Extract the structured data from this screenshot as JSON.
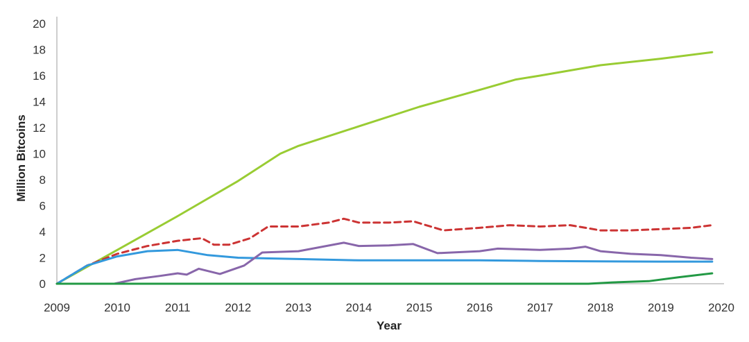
{
  "chart_data": {
    "type": "line",
    "xlabel": "Year",
    "ylabel": "Million Bitcoins",
    "xlim": [
      2009,
      2020
    ],
    "ylim": [
      0,
      20
    ],
    "x_ticks": [
      "2009",
      "2010",
      "2011",
      "2012",
      "2013",
      "2014",
      "2015",
      "2016",
      "2017",
      "2018",
      "2019",
      "2020"
    ],
    "y_ticks": [
      "0",
      "2",
      "4",
      "6",
      "8",
      "10",
      "12",
      "14",
      "16",
      "18",
      "20"
    ],
    "grid": false,
    "legend": "none",
    "series": [
      {
        "color": "#99cc33",
        "style": "solid",
        "points": [
          [
            2009,
            0
          ],
          [
            2010,
            2.6
          ],
          [
            2011,
            5.2
          ],
          [
            2012,
            7.9
          ],
          [
            2012.7,
            10.0
          ],
          [
            2013,
            10.6
          ],
          [
            2014,
            12.1
          ],
          [
            2015,
            13.6
          ],
          [
            2016,
            14.9
          ],
          [
            2016.6,
            15.7
          ],
          [
            2017,
            16.0
          ],
          [
            2018,
            16.8
          ],
          [
            2019,
            17.3
          ],
          [
            2019.85,
            17.8
          ]
        ]
      },
      {
        "color": "#cc3333",
        "style": "dashed",
        "points": [
          [
            2009,
            0
          ],
          [
            2009.5,
            1.4
          ],
          [
            2010,
            2.3
          ],
          [
            2010.5,
            2.9
          ],
          [
            2011,
            3.3
          ],
          [
            2011.4,
            3.5
          ],
          [
            2011.6,
            3.0
          ],
          [
            2011.85,
            3.0
          ],
          [
            2012.2,
            3.5
          ],
          [
            2012.5,
            4.4
          ],
          [
            2013,
            4.4
          ],
          [
            2013.5,
            4.7
          ],
          [
            2013.75,
            5.0
          ],
          [
            2014,
            4.7
          ],
          [
            2014.5,
            4.7
          ],
          [
            2014.9,
            4.8
          ],
          [
            2015.4,
            4.1
          ],
          [
            2016,
            4.3
          ],
          [
            2016.5,
            4.5
          ],
          [
            2017,
            4.4
          ],
          [
            2017.5,
            4.5
          ],
          [
            2018,
            4.1
          ],
          [
            2018.5,
            4.1
          ],
          [
            2019,
            4.2
          ],
          [
            2019.5,
            4.3
          ],
          [
            2019.85,
            4.5
          ]
        ]
      },
      {
        "color": "#3399dd",
        "style": "solid",
        "points": [
          [
            2009,
            0
          ],
          [
            2009.5,
            1.4
          ],
          [
            2010,
            2.1
          ],
          [
            2010.5,
            2.5
          ],
          [
            2011,
            2.6
          ],
          [
            2011.5,
            2.2
          ],
          [
            2012,
            2.0
          ],
          [
            2013,
            1.9
          ],
          [
            2014,
            1.8
          ],
          [
            2015,
            1.8
          ],
          [
            2016,
            1.8
          ],
          [
            2017,
            1.75
          ],
          [
            2018,
            1.72
          ],
          [
            2019,
            1.7
          ],
          [
            2019.85,
            1.7
          ]
        ]
      },
      {
        "color": "#8866aa",
        "style": "solid",
        "points": [
          [
            2009.95,
            0
          ],
          [
            2010.3,
            0.35
          ],
          [
            2010.7,
            0.6
          ],
          [
            2011,
            0.8
          ],
          [
            2011.15,
            0.7
          ],
          [
            2011.35,
            1.15
          ],
          [
            2011.7,
            0.75
          ],
          [
            2012.1,
            1.4
          ],
          [
            2012.4,
            2.4
          ],
          [
            2013,
            2.5
          ],
          [
            2013.75,
            3.15
          ],
          [
            2014,
            2.9
          ],
          [
            2014.5,
            2.95
          ],
          [
            2014.9,
            3.05
          ],
          [
            2015.3,
            2.35
          ],
          [
            2016,
            2.5
          ],
          [
            2016.3,
            2.7
          ],
          [
            2017,
            2.6
          ],
          [
            2017.5,
            2.7
          ],
          [
            2017.75,
            2.85
          ],
          [
            2018,
            2.5
          ],
          [
            2018.5,
            2.3
          ],
          [
            2019,
            2.2
          ],
          [
            2019.5,
            2.0
          ],
          [
            2019.85,
            1.9
          ]
        ]
      },
      {
        "color": "#229944",
        "style": "solid",
        "points": [
          [
            2009,
            0
          ],
          [
            2017.8,
            0
          ],
          [
            2018.2,
            0.1
          ],
          [
            2018.8,
            0.2
          ],
          [
            2019.3,
            0.5
          ],
          [
            2019.85,
            0.8
          ]
        ]
      }
    ]
  }
}
